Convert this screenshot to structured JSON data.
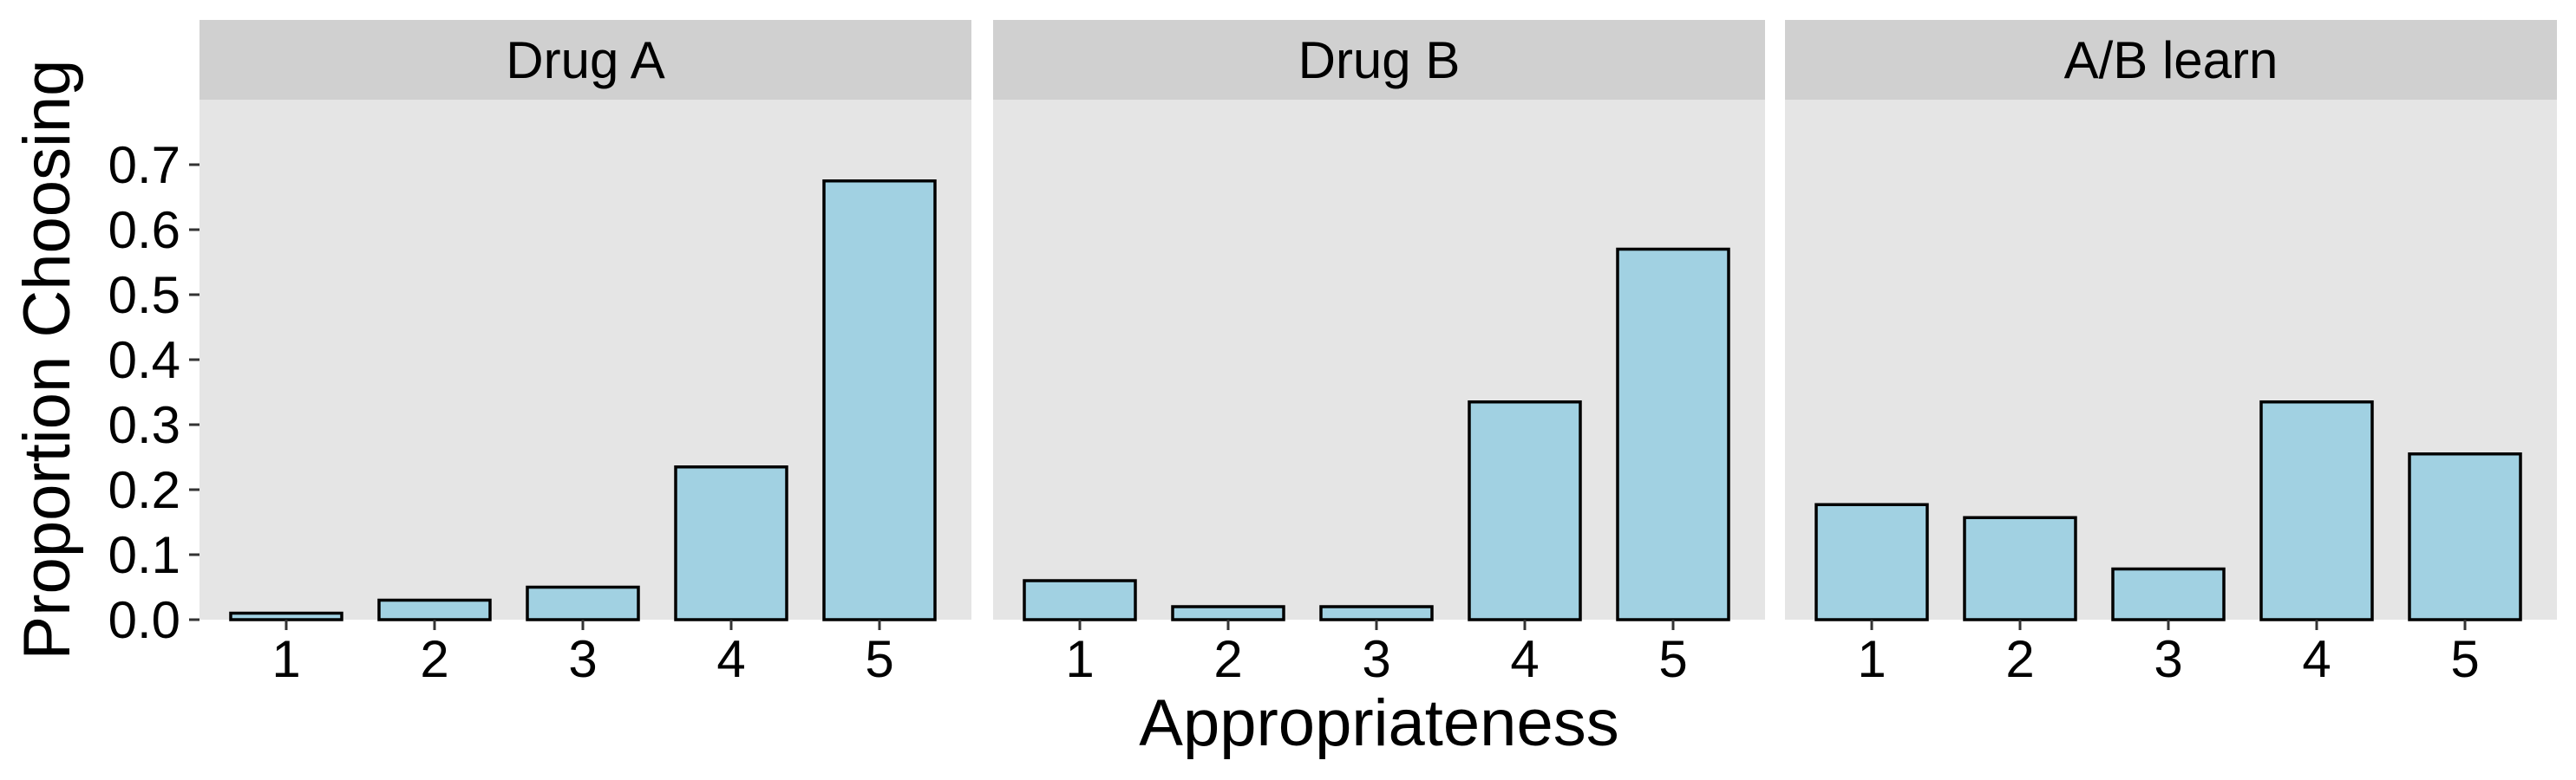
{
  "chart_data": {
    "type": "bar",
    "layout": "facets",
    "xlabel": "Appropriateness",
    "ylabel": "Proportion Choosing",
    "ylim": [
      0,
      0.8
    ],
    "yticks": [
      0.0,
      0.1,
      0.2,
      0.3,
      0.4,
      0.5,
      0.6,
      0.7
    ],
    "ytick_labels": [
      "0.0",
      "0.1",
      "0.2",
      "0.3",
      "0.4",
      "0.5",
      "0.6",
      "0.7"
    ],
    "categories": [
      "1",
      "2",
      "3",
      "4",
      "5"
    ],
    "grid": false,
    "legend": "none",
    "panels": [
      {
        "title": "Drug A",
        "values": [
          0.01,
          0.03,
          0.05,
          0.235,
          0.675
        ]
      },
      {
        "title": "Drug B",
        "values": [
          0.06,
          0.02,
          0.02,
          0.335,
          0.57
        ]
      },
      {
        "title": "A/B learn",
        "values": [
          0.177,
          0.157,
          0.078,
          0.335,
          0.255
        ]
      }
    ],
    "colors": {
      "bar_fill": "#a1d1e2",
      "bar_stroke": "#000000",
      "panel_background": "#e5e5e5",
      "strip_background": "#d0d0d0"
    }
  }
}
